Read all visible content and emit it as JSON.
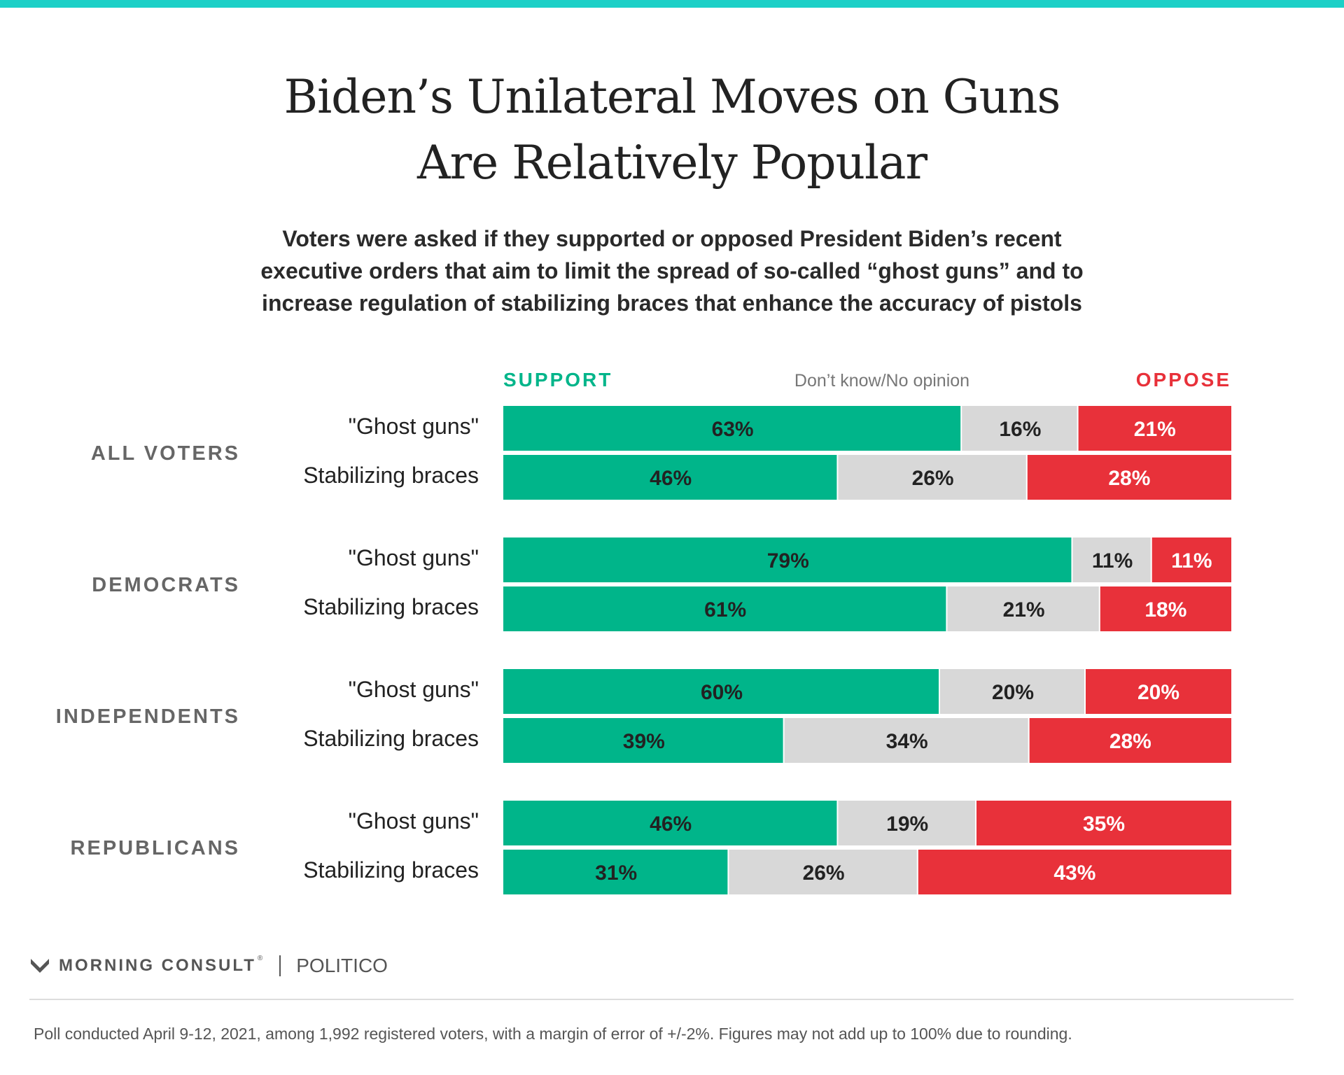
{
  "title_lines": [
    "Biden’s Unilateral Moves on Guns",
    "Are Relatively Popular"
  ],
  "subtitle_lines": [
    "Voters were asked if they supported or opposed President Biden’s recent",
    "executive orders that aim to limit the spread of so-called “ghost guns” and to",
    "increase regulation of stabilizing braces that enhance the accuracy of pistols"
  ],
  "chart_data": {
    "type": "bar",
    "orientation": "horizontal",
    "stacked": true,
    "normalized_to": 100,
    "legend": [
      {
        "name": "SUPPORT",
        "color": "#00b58a"
      },
      {
        "name": "Don’t know/No opinion",
        "color": "#d8d8d8"
      },
      {
        "name": "OPPOSE",
        "color": "#e8313a"
      }
    ],
    "groups": [
      {
        "label": "ALL VOTERS",
        "rows": [
          {
            "label": "\"Ghost guns\"",
            "values": [
              63,
              16,
              21
            ],
            "labels": [
              "63%",
              "16%",
              "21%"
            ]
          },
          {
            "label": "Stabilizing braces",
            "values": [
              46,
              26,
              28
            ],
            "labels": [
              "46%",
              "26%",
              "28%"
            ]
          }
        ]
      },
      {
        "label": "DEMOCRATS",
        "rows": [
          {
            "label": "\"Ghost guns\"",
            "values": [
              79,
              11,
              11
            ],
            "labels": [
              "79%",
              "11%",
              "11%"
            ]
          },
          {
            "label": "Stabilizing braces",
            "values": [
              61,
              21,
              18
            ],
            "labels": [
              "61%",
              "21%",
              "18%"
            ]
          }
        ]
      },
      {
        "label": "INDEPENDENTS",
        "rows": [
          {
            "label": "\"Ghost guns\"",
            "values": [
              60,
              20,
              20
            ],
            "labels": [
              "60%",
              "20%",
              "20%"
            ]
          },
          {
            "label": "Stabilizing braces",
            "values": [
              39,
              34,
              28
            ],
            "labels": [
              "39%",
              "34%",
              "28%"
            ]
          }
        ]
      },
      {
        "label": "REPUBLICANS",
        "rows": [
          {
            "label": "\"Ghost guns\"",
            "values": [
              46,
              19,
              35
            ],
            "labels": [
              "46%",
              "19%",
              "35%"
            ]
          },
          {
            "label": "Stabilizing braces",
            "values": [
              31,
              26,
              43
            ],
            "labels": [
              "31%",
              "26%",
              "43%"
            ]
          }
        ]
      }
    ],
    "grid": false
  },
  "segment_text_colors": [
    "#222222",
    "#222222",
    "#ffffff"
  ],
  "group_label_color": "#666666",
  "row_label_color": "#222222",
  "brand": {
    "name": "MORNING CONSULT",
    "trademark": "®",
    "partner": "POLITICO",
    "accent": "#222222"
  },
  "footnote": "Poll conducted April 9-12, 2021, among 1,992 registered voters, with a margin of error of +/-2%. Figures may not add up to 100% due to rounding."
}
